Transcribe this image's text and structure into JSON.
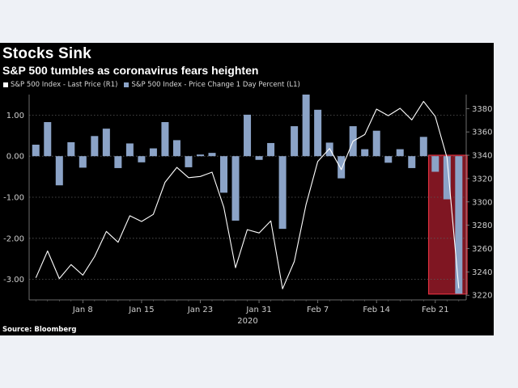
{
  "chart_data": {
    "type": "bar+line",
    "title": "Stocks Sink",
    "subtitle": "S&P 500 tumbles as coronavirus fears heighten",
    "source": "Source: Bloomberg",
    "x_tick_labels": [
      "Jan 8",
      "Jan 15",
      "Jan 23",
      "Jan 31",
      "Feb 7",
      "Feb 14",
      "Feb 21"
    ],
    "x_year_label": "2020",
    "left_axis": {
      "ticks": [
        "1.00",
        "0.00",
        "-1.00",
        "-2.00",
        "-3.00"
      ],
      "values": [
        1,
        0,
        -1,
        -2,
        -3
      ],
      "ylim": [
        -3.5,
        1.5
      ]
    },
    "right_axis": {
      "ticks": [
        "3380",
        "3360",
        "3340",
        "3320",
        "3300",
        "3280",
        "3260",
        "3240",
        "3220"
      ],
      "values": [
        3380,
        3360,
        3340,
        3320,
        3300,
        3280,
        3260,
        3240,
        3220
      ],
      "ylim": [
        3216,
        3392
      ]
    },
    "series": [
      {
        "name": "S&P 500 Index - Price Change 1 Day Percent (L1)",
        "axis": "left",
        "type": "bar",
        "color": "#8ba3c7",
        "values": [
          0.28,
          0.83,
          -0.71,
          0.34,
          -0.28,
          0.49,
          0.67,
          -0.29,
          0.31,
          -0.15,
          0.19,
          0.83,
          0.39,
          -0.27,
          0.04,
          0.08,
          -0.89,
          -1.57,
          1.01,
          -0.09,
          0.32,
          -1.77,
          0.73,
          1.5,
          1.13,
          0.33,
          -0.54,
          0.73,
          0.17,
          0.62,
          -0.16,
          0.17,
          -0.29,
          0.47,
          -0.38,
          -1.05,
          -3.35
        ]
      },
      {
        "name": "S&P 500 Index - Last Price (R1)",
        "axis": "right",
        "type": "line",
        "color": "#ffffff",
        "values": [
          3234.9,
          3257.9,
          3234.3,
          3246.3,
          3237.2,
          3253.1,
          3274.7,
          3265.4,
          3288.1,
          3283.2,
          3289.3,
          3316.8,
          3329.6,
          3320.8,
          3321.8,
          3325.5,
          3295.5,
          3243.6,
          3276.2,
          3273.4,
          3283.7,
          3225.5,
          3248.9,
          3297.6,
          3334.7,
          3345.8,
          3327.7,
          3352.1,
          3357.8,
          3379.5,
          3373.9,
          3380.2,
          3370.3,
          3386.2,
          3373.2,
          3337.8,
          3225.9
        ]
      }
    ],
    "highlight": {
      "from_index": 34,
      "to_index": 36,
      "color": "#b01e2f"
    },
    "grid": true,
    "legend_position": "top-left"
  }
}
